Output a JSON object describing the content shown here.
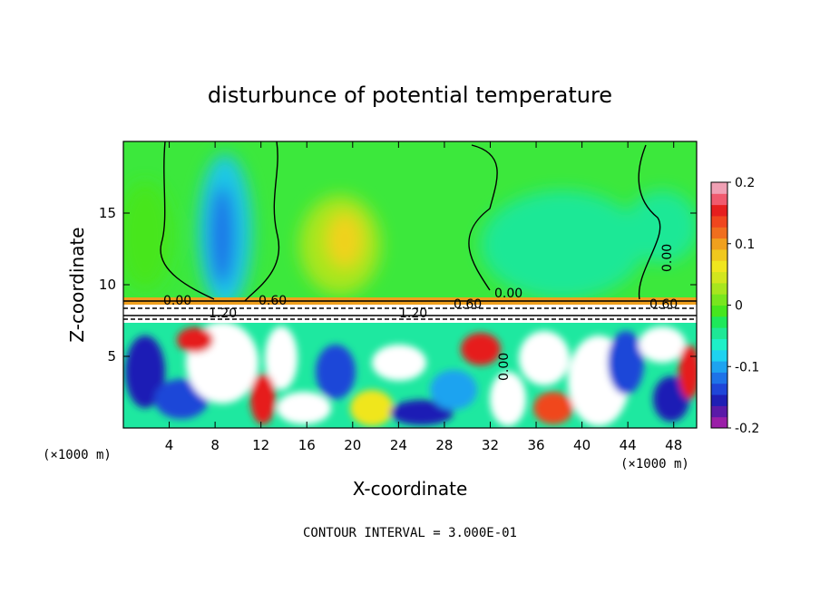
{
  "chart_data": {
    "type": "heatmap",
    "title": "disturbunce of potential temperature",
    "xlabel": "X-coordinate",
    "ylabel": "Z-coordinate",
    "x_unit_label": "(×1000 m)",
    "z_unit_label": "(×1000 m)",
    "xlim": [
      0,
      50
    ],
    "ylim": [
      0,
      20
    ],
    "x_ticks": [
      4,
      8,
      12,
      16,
      20,
      24,
      28,
      32,
      36,
      40,
      44,
      48
    ],
    "y_ticks": [
      5,
      10,
      15
    ],
    "colorbar": {
      "min": -0.2,
      "max": 0.2,
      "tick_values": [
        0.2,
        0.1,
        0,
        -0.1,
        -0.2
      ],
      "tick_labels": [
        "0.2",
        "0.1",
        "0",
        "-0.1",
        "-0.2"
      ],
      "colors": [
        "#9b1fa8",
        "#5a1aa8",
        "#1f1fb5",
        "#1f46d8",
        "#1e73e8",
        "#1ea3f0",
        "#1ed2f0",
        "#1ef0c8",
        "#1ee896",
        "#1ee85a",
        "#46e61e",
        "#78e61e",
        "#a8e61e",
        "#d2e61e",
        "#f0e61e",
        "#f0c81e",
        "#f0a01e",
        "#f06e1e",
        "#f0461e",
        "#e61e1e",
        "#f05a6e",
        "#f0a0b4"
      ]
    },
    "contour_interval_text": "CONTOUR INTERVAL = 3.000E-01",
    "contour_labels": [
      "0.00",
      "0.60",
      "1.20",
      "0.60",
      "0.60",
      "0.00",
      "0.00",
      "0.00",
      "1.20"
    ]
  }
}
